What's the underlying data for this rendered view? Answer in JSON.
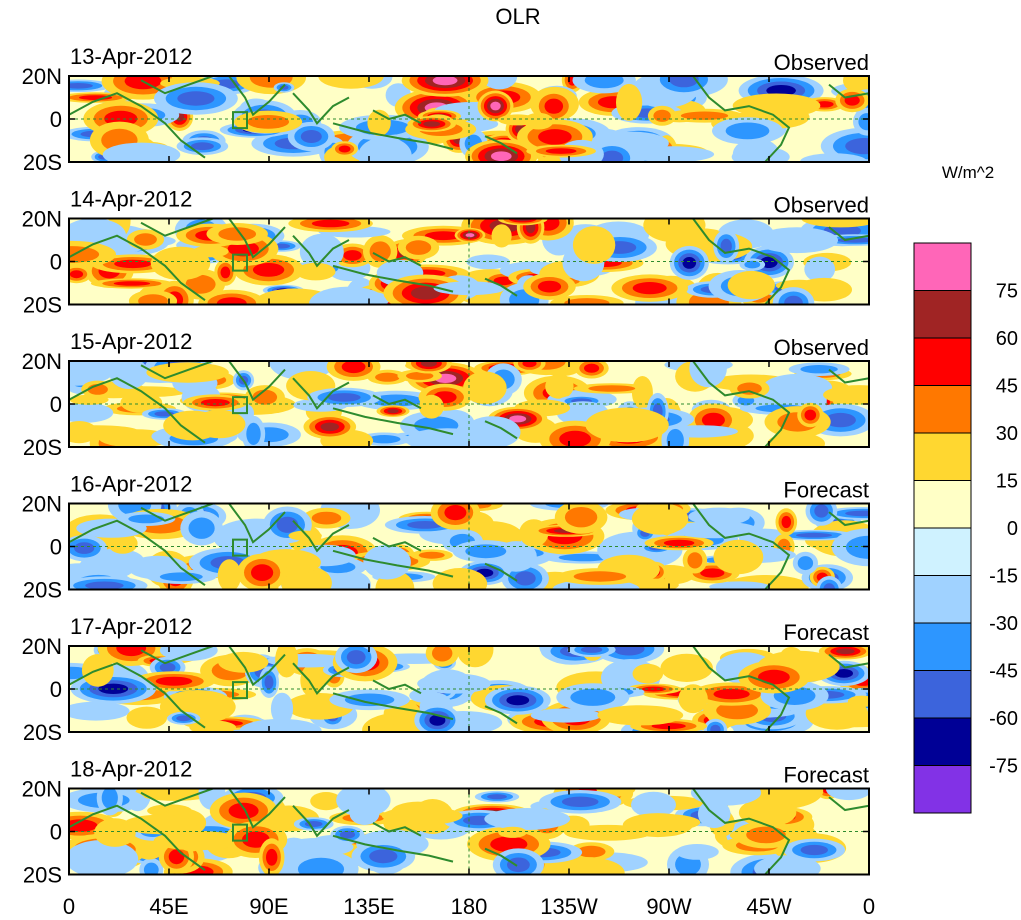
{
  "chart_data": {
    "type": "heatmap",
    "title": "OLR",
    "units_label": "W/m^2",
    "x_ticks": [
      "0",
      "45E",
      "90E",
      "135E",
      "180",
      "135W",
      "90W",
      "45W",
      "0"
    ],
    "y_ticks": [
      "20N",
      "0",
      "20S"
    ],
    "colorbar": {
      "levels": [
        "75",
        "60",
        "45",
        "30",
        "15",
        "0",
        "-15",
        "-30",
        "-45",
        "-60",
        "-75"
      ],
      "colors": [
        "#ff66b8",
        "#a02424",
        "#ff0000",
        "#ff7800",
        "#ffd730",
        "#ffffc6",
        "#cff2ff",
        "#a0d2ff",
        "#2d96ff",
        "#3c64dc",
        "#000096",
        "#8232e6"
      ]
    },
    "panels": [
      {
        "date": "13-Apr-2012",
        "kind": "Observed"
      },
      {
        "date": "14-Apr-2012",
        "kind": "Observed"
      },
      {
        "date": "15-Apr-2012",
        "kind": "Observed"
      },
      {
        "date": "16-Apr-2012",
        "kind": "Forecast"
      },
      {
        "date": "17-Apr-2012",
        "kind": "Forecast"
      },
      {
        "date": "18-Apr-2012",
        "kind": "Forecast"
      }
    ],
    "colors": {
      "coast": "#2e8b2e",
      "frame": "#000000",
      "equator_dash": "#2e8b2e"
    }
  }
}
